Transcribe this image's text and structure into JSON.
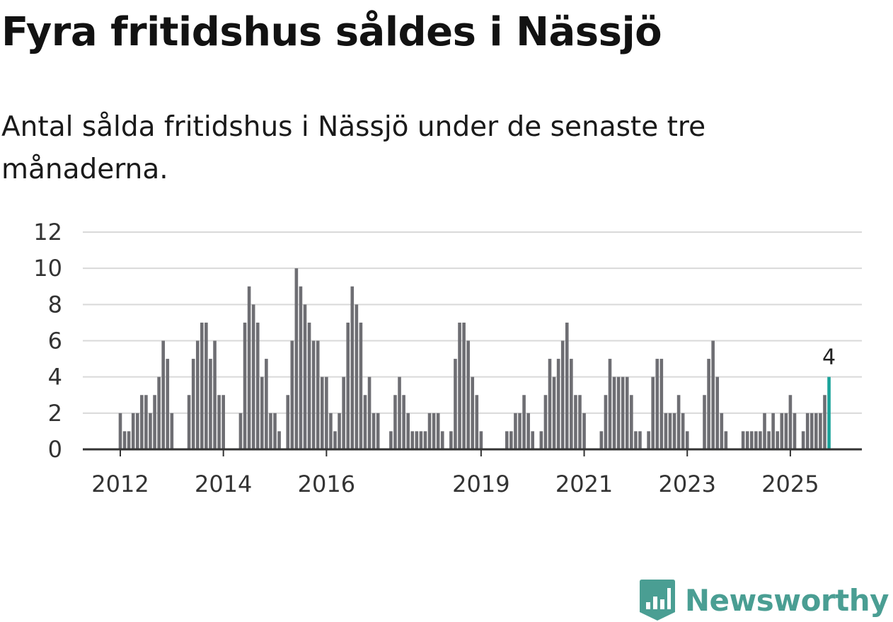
{
  "title": "Fyra fritidshus såldes i Nässjö",
  "subtitle": "Antal sålda fritidshus i Nässjö under de senaste tre månaderna.",
  "brand": {
    "name": "Newsworthy",
    "color": "#4a9e93"
  },
  "chart_data": {
    "type": "bar",
    "y_ticks": [
      0,
      2,
      4,
      6,
      8,
      10,
      12
    ],
    "ylim": [
      0,
      12
    ],
    "x_tick_labels": [
      {
        "label": "2012",
        "index": 0
      },
      {
        "label": "2014",
        "index": 24
      },
      {
        "label": "2016",
        "index": 48
      },
      {
        "label": "2019",
        "index": 84
      },
      {
        "label": "2021",
        "index": 108
      },
      {
        "label": "2023",
        "index": 132
      },
      {
        "label": "2025",
        "index": 156
      }
    ],
    "bar_color": "#6e6e73",
    "highlight_color": "#1aa39a",
    "highlight_label": "4",
    "values": [
      2,
      1,
      1,
      2,
      2,
      3,
      3,
      2,
      3,
      4,
      6,
      5,
      2,
      0,
      0,
      0,
      3,
      5,
      6,
      7,
      7,
      5,
      6,
      3,
      3,
      0,
      0,
      0,
      2,
      7,
      9,
      8,
      7,
      4,
      5,
      2,
      2,
      1,
      0,
      3,
      6,
      10,
      9,
      8,
      7,
      6,
      6,
      4,
      4,
      2,
      1,
      2,
      4,
      7,
      9,
      8,
      7,
      3,
      4,
      2,
      2,
      0,
      0,
      1,
      3,
      4,
      3,
      2,
      1,
      1,
      1,
      1,
      2,
      2,
      2,
      1,
      0,
      1,
      5,
      7,
      7,
      6,
      4,
      3,
      1,
      0,
      0,
      0,
      0,
      0,
      1,
      1,
      2,
      2,
      3,
      2,
      1,
      0,
      1,
      3,
      5,
      4,
      5,
      6,
      7,
      5,
      3,
      3,
      2,
      0,
      0,
      0,
      1,
      3,
      5,
      4,
      4,
      4,
      4,
      3,
      1,
      1,
      0,
      1,
      4,
      5,
      5,
      2,
      2,
      2,
      3,
      2,
      1,
      0,
      0,
      0,
      3,
      5,
      6,
      4,
      2,
      1,
      0,
      0,
      0,
      1,
      1,
      1,
      1,
      1,
      2,
      1,
      2,
      1,
      2,
      2,
      3,
      2,
      0,
      1,
      2,
      2,
      2,
      2,
      3,
      4
    ]
  }
}
